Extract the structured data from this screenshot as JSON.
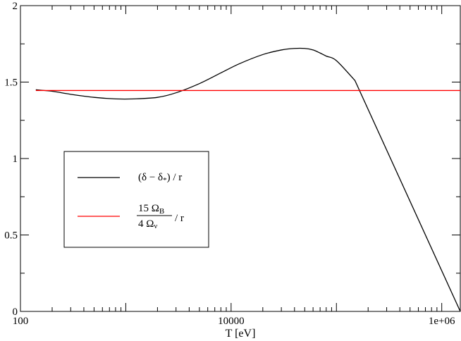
{
  "chart_data": {
    "type": "line",
    "xlabel": "T [eV]",
    "xscale": "log",
    "xlim": [
      100,
      1500000
    ],
    "ylim": [
      0,
      2
    ],
    "x_tick_labels": [
      {
        "value": 100,
        "label": "100"
      },
      {
        "value": 10000,
        "label": "10000"
      },
      {
        "value": 1000000,
        "label": "1e+06"
      }
    ],
    "y_tick_labels": [
      {
        "value": 0,
        "label": "0"
      },
      {
        "value": 0.5,
        "label": "0.5"
      },
      {
        "value": 1,
        "label": "1"
      },
      {
        "value": 1.5,
        "label": "1.5"
      },
      {
        "value": 2,
        "label": "2"
      }
    ],
    "grid": false,
    "legend_position": "left",
    "series": [
      {
        "color": "#000000",
        "x": [
          140,
          200,
          300,
          500,
          800,
          1200,
          2000,
          3000,
          5000,
          8000,
          12000,
          20000,
          30000,
          40000,
          50000,
          60000,
          70000,
          80000,
          100000,
          150000,
          1500000
        ],
        "y": [
          1.45,
          1.44,
          1.42,
          1.4,
          1.39,
          1.39,
          1.4,
          1.43,
          1.49,
          1.56,
          1.62,
          1.68,
          1.71,
          1.72,
          1.72,
          1.71,
          1.69,
          1.67,
          1.64,
          1.51,
          0.0
        ]
      },
      {
        "color": "#ff0000",
        "x": [
          140,
          1500000
        ],
        "y": [
          1.445,
          1.445
        ]
      }
    ],
    "legend": {
      "entries": [
        {
          "color": "#000000",
          "label_main": "(δ − δ",
          "label_sub": "*",
          "label_tail": ") / r"
        },
        {
          "color": "#ff0000",
          "num": "15 Ω",
          "num_sub": "B",
          "den": "4  Ω",
          "den_sub": "ν",
          "tail": "/ r"
        }
      ]
    }
  }
}
